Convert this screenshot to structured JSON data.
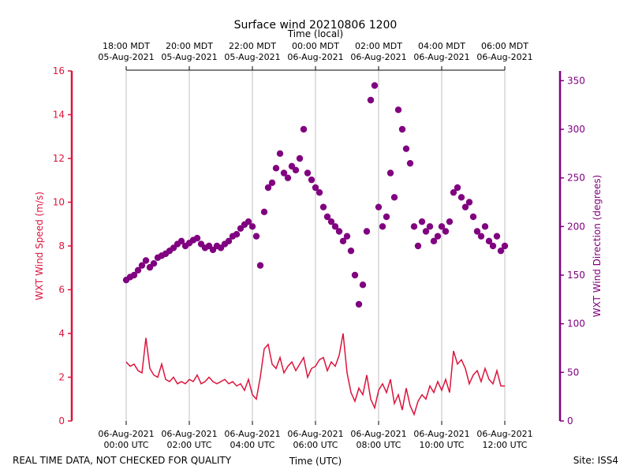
{
  "chart_data": {
    "type": "line",
    "title": "Surface wind 20210806 1200",
    "xlabel": "Time (UTC)",
    "x2label": "Time (local)",
    "ylabel": "WXT Wind Speed (m/s)",
    "y2label": "WXT Wind Direction (degrees)",
    "footer_left": "REAL TIME DATA, NOT CHECKED FOR QUALITY",
    "footer_right": "Site: ISS4",
    "grid": true,
    "xlim": [
      0,
      12
    ],
    "xticks": [
      {
        "value": 0,
        "label": "06-Aug-2021\n00:00 UTC"
      },
      {
        "value": 2,
        "label": "06-Aug-2021\n02:00 UTC"
      },
      {
        "value": 4,
        "label": "06-Aug-2021\n04:00 UTC"
      },
      {
        "value": 6,
        "label": "06-Aug-2021\n06:00 UTC"
      },
      {
        "value": 8,
        "label": "06-Aug-2021\n08:00 UTC"
      },
      {
        "value": 10,
        "label": "06-Aug-2021\n10:00 UTC"
      },
      {
        "value": 12,
        "label": "06-Aug-2021\n12:00 UTC"
      }
    ],
    "x2ticks": [
      {
        "value": 0,
        "label": "18:00 MDT\n05-Aug-2021"
      },
      {
        "value": 2,
        "label": "20:00 MDT\n05-Aug-2021"
      },
      {
        "value": 4,
        "label": "22:00 MDT\n05-Aug-2021"
      },
      {
        "value": 6,
        "label": "00:00 MDT\n06-Aug-2021"
      },
      {
        "value": 8,
        "label": "02:00 MDT\n06-Aug-2021"
      },
      {
        "value": 10,
        "label": "04:00 MDT\n06-Aug-2021"
      },
      {
        "value": 12,
        "label": "06:00 MDT\n06-Aug-2021"
      }
    ],
    "ylim": [
      0,
      16
    ],
    "yticks": [
      0,
      2,
      4,
      6,
      8,
      10,
      12,
      14,
      16
    ],
    "y2lim": [
      0,
      360
    ],
    "y2ticks": [
      0,
      50,
      100,
      150,
      200,
      250,
      300,
      350
    ],
    "ycolor": "#dc143c",
    "y2color": "#800080",
    "x": [
      0,
      0.125,
      0.25,
      0.375,
      0.5,
      0.625,
      0.75,
      0.875,
      1,
      1.125,
      1.25,
      1.375,
      1.5,
      1.625,
      1.75,
      1.875,
      2,
      2.125,
      2.25,
      2.375,
      2.5,
      2.625,
      2.75,
      2.875,
      3,
      3.125,
      3.25,
      3.375,
      3.5,
      3.625,
      3.75,
      3.875,
      4,
      4.125,
      4.25,
      4.375,
      4.5,
      4.625,
      4.75,
      4.875,
      5,
      5.125,
      5.25,
      5.375,
      5.5,
      5.625,
      5.75,
      5.875,
      6,
      6.125,
      6.25,
      6.375,
      6.5,
      6.625,
      6.75,
      6.875,
      7,
      7.125,
      7.25,
      7.375,
      7.5,
      7.625,
      7.75,
      7.875,
      8,
      8.125,
      8.25,
      8.375,
      8.5,
      8.625,
      8.75,
      8.875,
      9,
      9.125,
      9.25,
      9.375,
      9.5,
      9.625,
      9.75,
      9.875,
      10,
      10.125,
      10.25,
      10.375,
      10.5,
      10.625,
      10.75,
      10.875,
      11,
      11.125,
      11.25,
      11.375,
      11.5,
      11.625,
      11.75,
      11.875,
      12
    ],
    "series": [
      {
        "type": "line",
        "color": "#dc143c",
        "values": [
          2.7,
          2.5,
          2.6,
          2.3,
          2.2,
          3.8,
          2.4,
          2.1,
          2.0,
          2.6,
          1.9,
          1.8,
          2.0,
          1.7,
          1.8,
          1.7,
          1.9,
          1.8,
          2.1,
          1.7,
          1.8,
          2.0,
          1.8,
          1.7,
          1.8,
          1.9,
          1.7,
          1.8,
          1.6,
          1.7,
          1.4,
          1.9,
          1.2,
          1.0,
          2.0,
          3.3,
          3.5,
          2.6,
          2.4,
          2.9,
          2.2,
          2.5,
          2.7,
          2.3,
          2.6,
          2.9,
          2.0,
          2.4,
          2.5,
          2.8,
          2.9,
          2.3,
          2.7,
          2.5,
          3.0,
          4.0,
          2.2,
          1.3,
          0.9,
          1.5,
          1.2,
          2.1,
          1.0,
          0.6,
          1.4,
          1.7,
          1.3,
          1.9,
          0.8,
          1.2,
          0.5,
          1.5,
          0.7,
          0.3,
          0.9,
          1.2,
          1.0,
          1.6,
          1.3,
          1.8,
          1.4,
          1.9,
          1.3,
          3.2,
          2.6,
          2.8,
          2.4,
          1.7,
          2.1,
          2.3,
          1.8,
          2.4,
          1.9,
          1.7,
          2.3,
          1.6,
          1.6
        ]
      },
      {
        "type": "scatter",
        "axis": "y2",
        "color": "#800080",
        "values": [
          145,
          148,
          150,
          155,
          160,
          165,
          158,
          162,
          168,
          170,
          172,
          175,
          178,
          182,
          185,
          180,
          183,
          186,
          188,
          182,
          178,
          180,
          176,
          180,
          178,
          182,
          185,
          190,
          192,
          198,
          202,
          205,
          200,
          190,
          160,
          215,
          240,
          245,
          260,
          275,
          255,
          250,
          262,
          258,
          270,
          300,
          255,
          248,
          240,
          235,
          220,
          210,
          205,
          200,
          195,
          185,
          190,
          175,
          150,
          120,
          140,
          195,
          330,
          345,
          220,
          200,
          210,
          255,
          230,
          320,
          300,
          280,
          265,
          200,
          180,
          205,
          195,
          200,
          185,
          190,
          200,
          195,
          205,
          235,
          240,
          230,
          220,
          225,
          210,
          195,
          190,
          200,
          185,
          180,
          190,
          175,
          180
        ]
      }
    ]
  }
}
